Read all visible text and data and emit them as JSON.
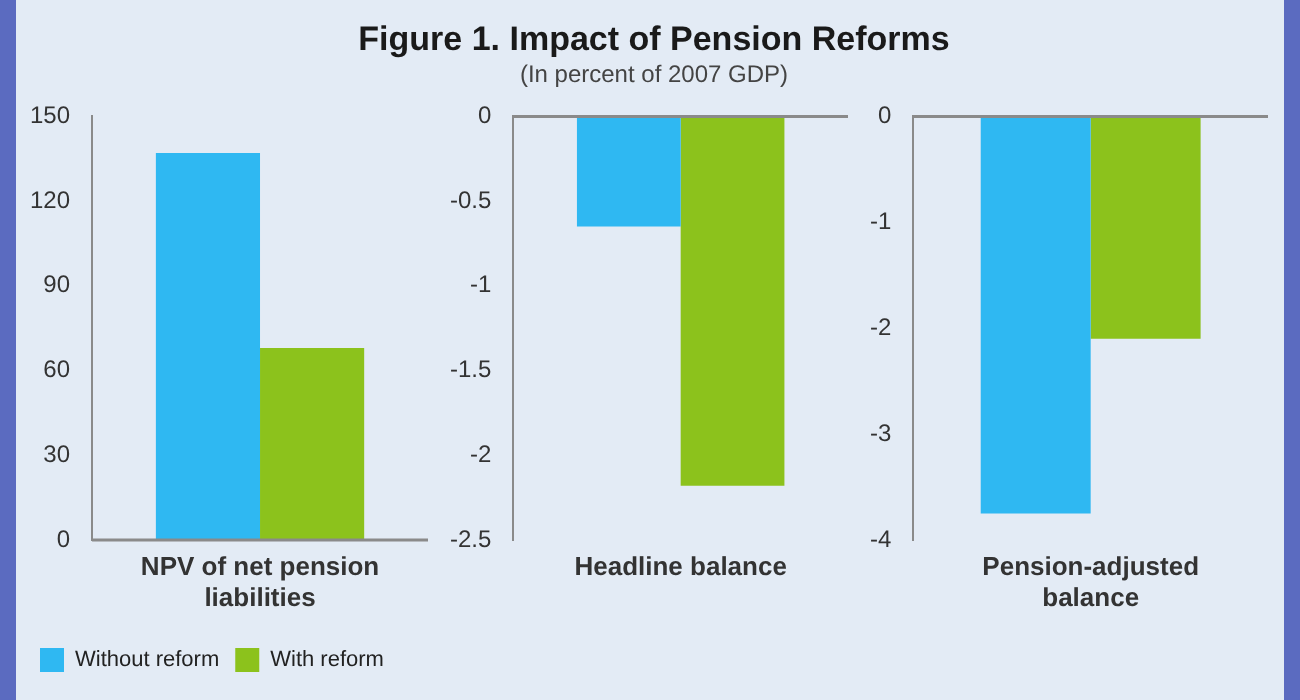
{
  "chart_data": [
    {
      "type": "bar",
      "categories": [
        "NPV of net pension liabilities"
      ],
      "legend": "bottom",
      "series": [
        {
          "name": "Without reform",
          "color": "#2fb8f2",
          "values": [
            137
          ]
        },
        {
          "name": "With reform",
          "color": "#8cc21c",
          "values": [
            68
          ]
        }
      ],
      "ylim": [
        0,
        150
      ],
      "yticks": [
        0,
        30,
        60,
        90,
        120,
        150
      ]
    },
    {
      "type": "bar",
      "title": "Figure 1. Impact of Pension Reforms",
      "subtitle": "(In percent of 2007 GDP)",
      "categories": [
        "Headline balance"
      ],
      "series": [
        {
          "color": "#2fb8f2",
          "values": [
            -0.65
          ]
        },
        {
          "color": "#8cc21c",
          "values": [
            -2.18
          ]
        }
      ],
      "ylim": [
        -2.5,
        0
      ],
      "yticks": [
        -2.5,
        -2,
        -1.5,
        -1,
        -0.5,
        0
      ]
    },
    {
      "type": "bar",
      "categories": [
        "Pension-adjusted balance"
      ],
      "series": [
        {
          "color": "#2fb8f2",
          "values": [
            -3.75
          ]
        },
        {
          "color": "#8cc21c",
          "values": [
            -2.1
          ]
        }
      ],
      "ylim": [
        -4,
        0
      ],
      "yticks": [
        -4,
        -3,
        -2,
        -1,
        0
      ]
    }
  ]
}
